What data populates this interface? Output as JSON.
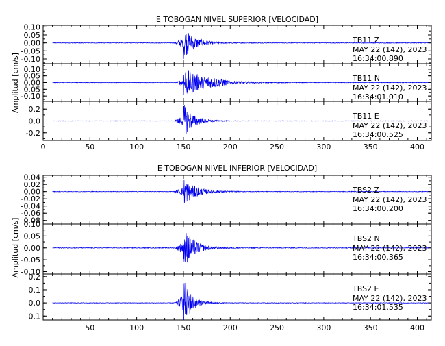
{
  "chart_data": [
    {
      "type": "line",
      "title": "E TOBOGAN NIVEL SUPERIOR [VELOCIDAD]",
      "ylabel": "Amplitud [cm/s]",
      "xlabel": "",
      "xlim": [
        0,
        415
      ],
      "x_ticks": [
        "0",
        "50",
        "100",
        "150",
        "200",
        "250",
        "300",
        "350",
        "400"
      ],
      "x_tick_values": [
        0,
        50,
        100,
        150,
        200,
        250,
        300,
        350,
        400
      ],
      "line_color": "#0000ee",
      "grid": false,
      "panels": [
        {
          "station": "TB11",
          "component": "Z",
          "date": "MAY 22 (142), 2023",
          "time": "16:34:00.890",
          "ylim": [
            -0.13,
            0.11
          ],
          "y_ticks": [
            "0.10",
            "0.05",
            "0.00",
            "-0.05",
            "-0.10"
          ],
          "y_tick_values": [
            0.1,
            0.05,
            0.0,
            -0.05,
            -0.1
          ],
          "noise": 0.002,
          "onset_s": 140,
          "peak_s": 150,
          "peak": 0.1,
          "decay_s": 12,
          "tail": 0.0
        },
        {
          "station": "TB11",
          "component": "N",
          "date": "MAY 22 (142), 2023",
          "time": "16:34:01.010",
          "ylim": [
            -0.14,
            0.14
          ],
          "y_ticks": [
            "0.10",
            "0.05",
            "0.00",
            "-0.05",
            "-0.10"
          ],
          "y_tick_values": [
            0.1,
            0.05,
            0.0,
            -0.05,
            -0.1
          ],
          "noise": 0.002,
          "onset_s": 143,
          "peak_s": 150,
          "peak": 0.12,
          "decay_s": 22,
          "tail": 0.01
        },
        {
          "station": "TB11",
          "component": "E",
          "date": "MAY 22 (142), 2023",
          "time": "16:34:00.525",
          "ylim": [
            -0.33,
            0.33
          ],
          "y_ticks": [
            "0.2",
            "0.0",
            "-0.2"
          ],
          "y_tick_values": [
            0.2,
            0.0,
            -0.2
          ],
          "noise": 0.004,
          "onset_s": 140,
          "peak_s": 150,
          "peak": 0.3,
          "decay_s": 10,
          "tail": 0.0
        }
      ]
    },
    {
      "type": "line",
      "title": "E TOBOGAN NIVEL INFERIOR [VELOCIDAD]",
      "ylabel": "Amplitud [cm/s]",
      "xlabel": "",
      "xlim": [
        0,
        415
      ],
      "x_ticks": [
        "50",
        "100",
        "150",
        "200",
        "250",
        "300",
        "350",
        "400"
      ],
      "x_tick_values": [
        50,
        100,
        150,
        200,
        250,
        300,
        350,
        400
      ],
      "line_color": "#0000ee",
      "grid": false,
      "panels": [
        {
          "station": "TBS2",
          "component": "Z",
          "date": "MAY 22 (142), 2023",
          "time": "16:34:00.200",
          "ylim": [
            -0.09,
            0.045
          ],
          "y_ticks": [
            "0.04",
            "0.02",
            "0.00",
            "-0.02",
            "-0.04",
            "-0.06",
            "-0.08"
          ],
          "y_tick_values": [
            0.04,
            0.02,
            0.0,
            -0.02,
            -0.04,
            -0.06,
            -0.08
          ],
          "noise": 0.0008,
          "onset_s": 140,
          "peak_s": 150,
          "peak": 0.04,
          "decay_s": 13,
          "tail": 0.0
        },
        {
          "station": "TBS2",
          "component": "N",
          "date": "MAY 22 (142), 2023",
          "time": "16:34:00.365",
          "ylim": [
            -0.11,
            0.1
          ],
          "y_ticks": [
            "0.10",
            "0.05",
            "0.00",
            "-0.05",
            "-0.10"
          ],
          "y_tick_values": [
            0.1,
            0.05,
            0.0,
            -0.05,
            -0.1
          ],
          "noise": 0.0015,
          "onset_s": 141,
          "peak_s": 150,
          "peak": 0.09,
          "decay_s": 11,
          "tail": 0.0
        },
        {
          "station": "TBS2",
          "component": "E",
          "date": "MAY 22 (142), 2023",
          "time": "16:34:01.535",
          "ylim": [
            -0.13,
            0.22
          ],
          "y_ticks": [
            "0.2",
            "0.1",
            "0.0",
            "-0.1"
          ],
          "y_tick_values": [
            0.2,
            0.1,
            0.0,
            -0.1
          ],
          "noise": 0.002,
          "onset_s": 141,
          "peak_s": 150,
          "peak": 0.2,
          "decay_s": 8,
          "tail": 0.0
        }
      ]
    }
  ]
}
